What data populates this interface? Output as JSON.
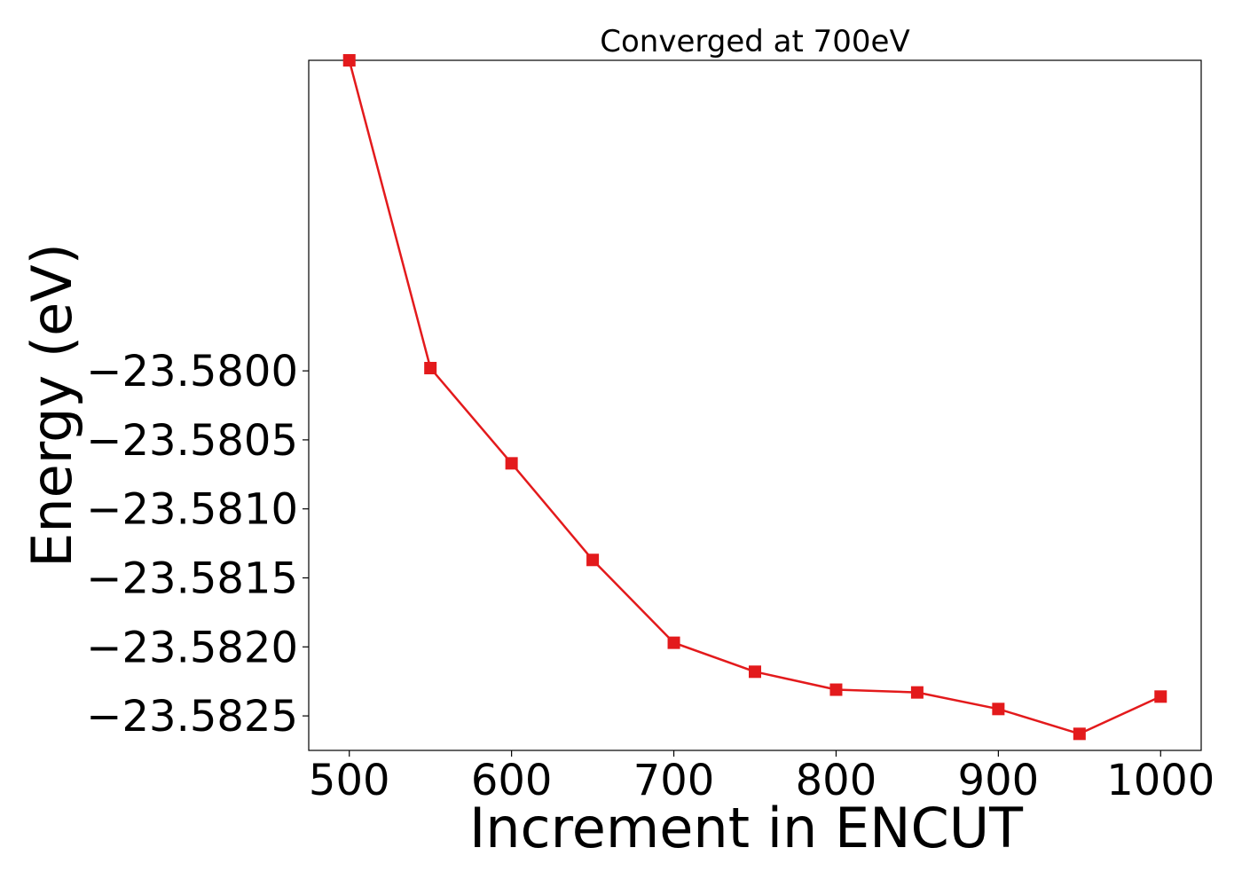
{
  "chart_data": {
    "type": "line",
    "title": "Converged at 700eV",
    "xlabel": "Increment in ENCUT",
    "ylabel": "Energy (eV)",
    "x": [
      500,
      550,
      600,
      650,
      700,
      750,
      800,
      850,
      900,
      950,
      1000
    ],
    "series": [
      {
        "values": [
          -23.57775,
          -23.57998,
          -23.58067,
          -23.58137,
          -23.58197,
          -23.58218,
          -23.58231,
          -23.58233,
          -23.58245,
          -23.58263,
          -23.58236
        ],
        "color": "#e31a1c",
        "marker": "square"
      }
    ],
    "xlim": [
      475,
      1025
    ],
    "ylim": [
      -23.58275,
      -23.57775
    ],
    "xticks": [
      500,
      600,
      700,
      800,
      900,
      1000
    ],
    "xtick_labels": [
      "500",
      "600",
      "700",
      "800",
      "900",
      "1000"
    ],
    "yticks": [
      -23.58,
      -23.5805,
      -23.581,
      -23.5815,
      -23.582,
      -23.5825
    ],
    "ytick_labels": [
      "−23.5800",
      "−23.5805",
      "−23.5810",
      "−23.5815",
      "−23.5820",
      "−23.5825"
    ],
    "grid": false,
    "legend": false
  }
}
